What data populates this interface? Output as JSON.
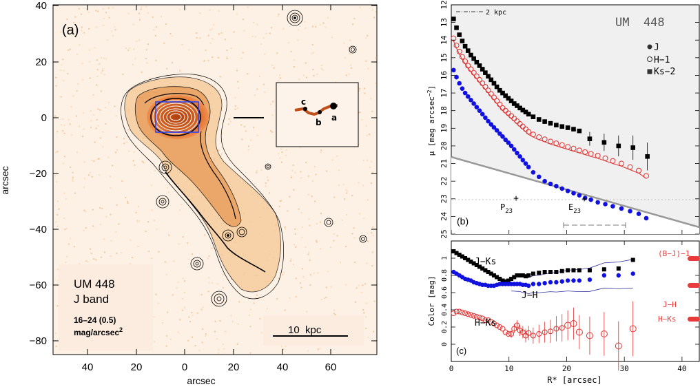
{
  "panel_a": {
    "label": "(a)",
    "object": "UM 448",
    "band": "J band",
    "range_line": "16–24 (0.5)",
    "unit_prefix": "mag/arcsec",
    "unit_sup": "2",
    "scale_bar": "10  kpc",
    "xlabel": "arcsec",
    "ylabel": "arcsec",
    "xticks": [
      "40",
      "20",
      "0",
      "20",
      "40",
      "60"
    ],
    "yticks": [
      "40",
      "20",
      "0",
      "−20",
      "−40",
      "−60",
      "−80"
    ],
    "inset_labels": [
      "c",
      "b",
      "a"
    ]
  },
  "panel_b": {
    "label": "(b)",
    "object": "UM  448",
    "scale": "2 kpc",
    "ylabel": "μ [mag arcsec",
    "ylabel_sup": "−2",
    "ylabel_end": "]",
    "yticks": [
      "12",
      "13",
      "14",
      "15",
      "16",
      "17",
      "18",
      "19",
      "20",
      "21",
      "22",
      "23",
      "24",
      "25"
    ],
    "legend": [
      "J",
      "H−1",
      "Ks−2"
    ],
    "markers": [
      "P",
      "E"
    ],
    "marker_sub": "23"
  },
  "panel_c": {
    "label": "(c)",
    "ylabel": "Color [mag]",
    "xlabel": "R* [arcsec]",
    "xticks": [
      "0",
      "10",
      "20",
      "30",
      "40"
    ],
    "yticks": [
      "0",
      "0.2",
      "0.4",
      "0.6",
      "0.8",
      "1"
    ],
    "curve_labels": [
      "J−Ks",
      "J−H",
      "H−Ks"
    ],
    "side_labels": [
      "(B−J)−1",
      "J−H",
      "H−Ks"
    ]
  },
  "colors": {
    "J": "#1010e0",
    "H": "#e03030",
    "Ks": "#000000",
    "halo": "#f0b070",
    "core": "#c8541a",
    "side": "#e83c3c"
  },
  "chart_data": [
    {
      "type": "scatter",
      "title": "UM  448",
      "ylabel": "μ [mag arcsec−2]",
      "ylim": [
        25,
        12
      ],
      "xlim": [
        0,
        43
      ],
      "series": [
        {
          "name": "J",
          "x": [
            0.4,
            0.9,
            1.4,
            1.9,
            2.4,
            2.9,
            3.4,
            3.9,
            4.4,
            4.9,
            5.4,
            5.9,
            6.4,
            6.9,
            7.4,
            7.9,
            8.4,
            8.9,
            9.4,
            9.9,
            10.4,
            10.9,
            11.4,
            11.9,
            12.4,
            12.9,
            13.4,
            14.2,
            15.2,
            16.2,
            17.2,
            18.2,
            19.2,
            20.2,
            21.2,
            22.2,
            23.2,
            24.2,
            25.4,
            26.7,
            28.0,
            29.5,
            31.0,
            32.5,
            33.8
          ],
          "y": [
            15.7,
            16.1,
            16.45,
            16.75,
            17.0,
            17.2,
            17.4,
            17.6,
            17.8,
            18.0,
            18.2,
            18.4,
            18.6,
            18.78,
            18.95,
            19.12,
            19.3,
            19.47,
            19.65,
            19.82,
            20.0,
            20.2,
            20.4,
            20.6,
            20.8,
            21.0,
            21.2,
            21.5,
            21.75,
            22.0,
            22.15,
            22.28,
            22.42,
            22.55,
            22.68,
            22.8,
            22.95,
            23.05,
            23.2,
            23.3,
            23.42,
            23.55,
            23.7,
            23.85,
            24.1
          ]
        },
        {
          "name": "H−1",
          "x": [
            0.4,
            0.9,
            1.4,
            1.9,
            2.4,
            2.9,
            3.4,
            3.9,
            4.4,
            4.9,
            5.4,
            5.9,
            6.4,
            6.9,
            7.4,
            7.9,
            8.4,
            8.9,
            9.4,
            9.9,
            10.4,
            10.9,
            11.4,
            11.9,
            12.4,
            12.9,
            13.4,
            14.2,
            15.2,
            16.2,
            17.2,
            18.2,
            19.2,
            20.2,
            21.2,
            22.2,
            23.2,
            24.2,
            25.4,
            26.7,
            28.0,
            29.5,
            31.0,
            32.5,
            33.8
          ],
          "y": [
            13.9,
            14.3,
            14.65,
            14.95,
            15.2,
            15.45,
            15.65,
            15.85,
            16.05,
            16.25,
            16.45,
            16.65,
            16.85,
            17.05,
            17.25,
            17.45,
            17.65,
            17.85,
            18.0,
            18.15,
            18.3,
            18.45,
            18.6,
            18.75,
            18.9,
            19.05,
            19.2,
            19.35,
            19.5,
            19.62,
            19.75,
            19.85,
            19.95,
            20.05,
            20.15,
            20.25,
            20.35,
            20.45,
            20.55,
            20.7,
            20.85,
            21.0,
            21.2,
            21.4,
            21.7
          ]
        },
        {
          "name": "Ks−2",
          "x": [
            0.4,
            0.9,
            1.4,
            1.9,
            2.4,
            2.9,
            3.4,
            3.9,
            4.4,
            4.9,
            5.4,
            5.9,
            6.4,
            6.9,
            7.4,
            7.9,
            8.4,
            8.9,
            9.4,
            9.9,
            10.4,
            10.9,
            11.4,
            11.9,
            12.4,
            12.9,
            13.4,
            14.2,
            15.2,
            16.2,
            17.2,
            18.2,
            19.2,
            20.2,
            21.2,
            22.2,
            24.0,
            26.5,
            29.0,
            31.5,
            34.0
          ],
          "y": [
            12.8,
            13.3,
            13.7,
            14.05,
            14.35,
            14.6,
            14.85,
            15.05,
            15.25,
            15.45,
            15.65,
            15.85,
            16.05,
            16.25,
            16.45,
            16.65,
            16.85,
            17.0,
            17.15,
            17.3,
            17.45,
            17.6,
            17.72,
            17.85,
            17.97,
            18.08,
            18.2,
            18.35,
            18.5,
            18.62,
            18.72,
            18.82,
            18.9,
            18.97,
            19.05,
            19.15,
            19.6,
            19.8,
            20.0,
            20.1,
            20.6
          ]
        }
      ]
    },
    {
      "type": "scatter",
      "xlabel": "R* [arcsec]",
      "ylabel": "Color [mag]",
      "xlim": [
        0,
        43
      ],
      "ylim": [
        -0.2,
        1.2
      ],
      "series": [
        {
          "name": "J−Ks",
          "x": [
            0.4,
            0.9,
            1.4,
            1.9,
            2.4,
            2.9,
            3.4,
            3.9,
            4.4,
            4.9,
            5.4,
            5.9,
            6.4,
            6.9,
            7.4,
            7.9,
            8.4,
            8.9,
            9.4,
            9.9,
            10.4,
            10.9,
            11.4,
            11.9,
            12.4,
            12.9,
            13.4,
            14.2,
            15.2,
            16.2,
            17.2,
            18.2,
            19.2,
            20.2,
            21.2,
            22.2,
            24.0,
            26.5,
            29.0,
            31.5
          ],
          "y": [
            1.08,
            1.06,
            1.04,
            1.02,
            1.0,
            0.98,
            0.96,
            0.94,
            0.92,
            0.9,
            0.88,
            0.86,
            0.84,
            0.82,
            0.8,
            0.78,
            0.76,
            0.74,
            0.73,
            0.74,
            0.76,
            0.78,
            0.8,
            0.8,
            0.8,
            0.79,
            0.8,
            0.82,
            0.83,
            0.84,
            0.84,
            0.84,
            0.85,
            0.86,
            0.86,
            0.86,
            0.86,
            0.87,
            0.88,
            0.98
          ]
        },
        {
          "name": "J−H",
          "x": [
            0.4,
            0.9,
            1.4,
            1.9,
            2.4,
            2.9,
            3.4,
            3.9,
            4.4,
            4.9,
            5.4,
            5.9,
            6.4,
            6.9,
            7.4,
            7.9,
            8.4,
            8.9,
            9.4,
            9.9,
            10.4,
            10.9,
            11.4,
            11.9,
            12.4,
            12.9,
            13.4,
            14.2,
            15.2,
            16.2,
            17.2,
            18.2,
            19.2,
            20.2,
            21.2,
            22.2,
            24.0,
            26.5,
            29.0,
            31.5
          ],
          "y": [
            0.84,
            0.82,
            0.8,
            0.78,
            0.76,
            0.75,
            0.74,
            0.72,
            0.71,
            0.7,
            0.69,
            0.69,
            0.68,
            0.68,
            0.68,
            0.69,
            0.7,
            0.7,
            0.7,
            0.7,
            0.7,
            0.7,
            0.7,
            0.7,
            0.69,
            0.69,
            0.68,
            0.7,
            0.7,
            0.71,
            0.72,
            0.72,
            0.73,
            0.74,
            0.74,
            0.74,
            0.75,
            0.8,
            0.8,
            0.82
          ]
        },
        {
          "name": "H−Ks",
          "x": [
            0.4,
            0.9,
            1.4,
            1.9,
            2.4,
            2.9,
            3.4,
            3.9,
            4.4,
            4.9,
            5.4,
            5.9,
            6.4,
            6.9,
            7.4,
            7.9,
            8.4,
            8.9,
            9.4,
            9.9,
            10.4,
            10.9,
            11.4,
            11.9,
            12.4,
            12.9,
            13.4,
            14.2,
            15.2,
            16.2,
            17.2,
            18.2,
            19.2,
            20.2,
            21.2,
            22.2,
            24.0,
            26.5,
            29.0,
            31.5
          ],
          "y": [
            0.36,
            0.38,
            0.38,
            0.37,
            0.36,
            0.35,
            0.34,
            0.33,
            0.32,
            0.31,
            0.3,
            0.28,
            0.28,
            0.26,
            0.24,
            0.22,
            0.2,
            0.18,
            0.14,
            0.12,
            0.12,
            0.18,
            0.22,
            0.16,
            0.14,
            0.1,
            0.13,
            0.1,
            0.12,
            0.14,
            0.15,
            0.18,
            0.19,
            0.22,
            0.24,
            0.14,
            0.1,
            0.12,
            -0.02,
            0.18
          ]
        }
      ]
    }
  ]
}
